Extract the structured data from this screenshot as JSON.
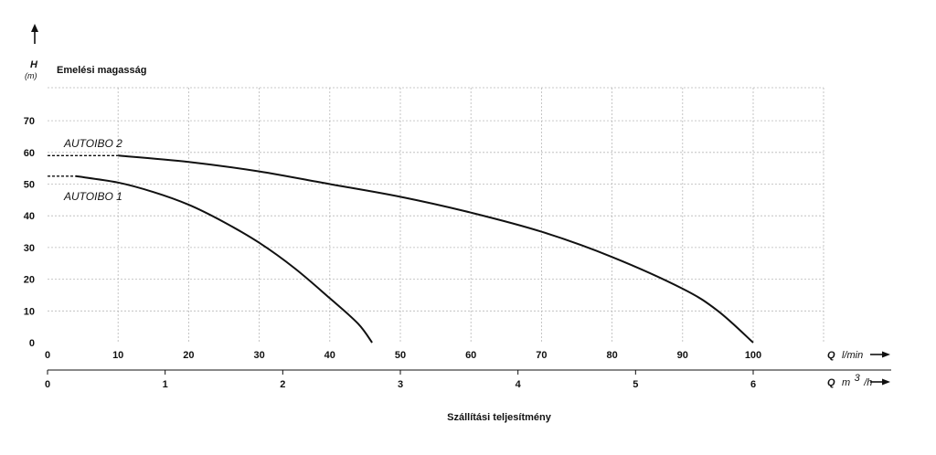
{
  "chart_data": {
    "type": "line",
    "title": "Emelési magasság",
    "xlabel": "Szállítási teljesítmény",
    "ylabel": {
      "symbol": "H",
      "unit": "(m)"
    },
    "ylim": [
      0,
      80
    ],
    "yticks": [
      0,
      10,
      20,
      30,
      40,
      50,
      60,
      70
    ],
    "x_primary": {
      "symbol": "Q",
      "unit": "l/min",
      "xlim": [
        0,
        111.5
      ],
      "ticks": [
        0,
        10,
        20,
        30,
        40,
        50,
        60,
        70,
        80,
        90,
        100
      ]
    },
    "x_secondary": {
      "symbol": "Q",
      "unit_base": "m",
      "unit_sup": "3",
      "unit_tail": "/h",
      "ticks": [
        0,
        1,
        2,
        3,
        4,
        5,
        6
      ]
    },
    "grid": true,
    "series": [
      {
        "name": "AUTOIBO 2",
        "dashed_x": [
          0,
          10
        ],
        "x": [
          10,
          20,
          30,
          40,
          50,
          60,
          70,
          80,
          90,
          95,
          100
        ],
        "y": [
          59,
          57,
          54,
          50,
          46,
          41,
          35,
          27,
          17,
          10,
          0
        ]
      },
      {
        "name": "AUTOIBO 1",
        "dashed_x": [
          0,
          4
        ],
        "x": [
          4,
          10,
          15,
          20,
          25,
          30,
          35,
          40,
          44,
          46
        ],
        "y": [
          52.5,
          50.5,
          47.5,
          43.5,
          38,
          31.5,
          23.5,
          14,
          6,
          0
        ]
      }
    ]
  }
}
